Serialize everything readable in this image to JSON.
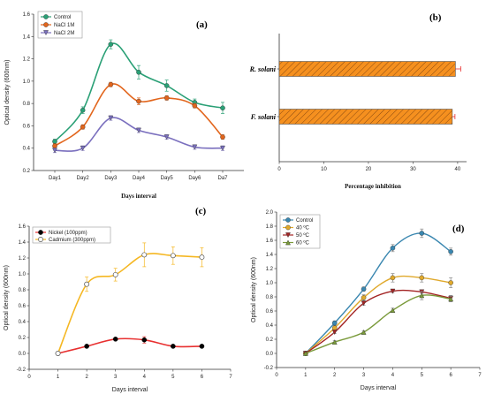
{
  "chart_data": [
    {
      "panel": "(a)",
      "type": "line",
      "categories": [
        "Day1",
        "Day2",
        "Day3",
        "Day4",
        "Day5",
        "Day6",
        "Da7"
      ],
      "xlabel": "Days interval",
      "ylabel": "Optical density (600nm)",
      "ylim": [
        0.2,
        1.6
      ],
      "yticks": [
        "0.2",
        "0.4",
        "0.6",
        "0.8",
        "1.0",
        "1.2",
        "1.4",
        "1.6"
      ],
      "legend_position": "top-left",
      "series": [
        {
          "name": "Control",
          "color": "#2aa076",
          "marker": "circle",
          "values": [
            0.46,
            0.74,
            1.33,
            1.08,
            0.96,
            0.81,
            0.76
          ],
          "errors": [
            0.02,
            0.03,
            0.04,
            0.06,
            0.05,
            0.03,
            0.05
          ]
        },
        {
          "name": "NaCl 1M",
          "color": "#e2651c",
          "marker": "circle",
          "values": [
            0.42,
            0.59,
            0.97,
            0.82,
            0.85,
            0.78,
            0.5
          ],
          "errors": [
            0.02,
            0.02,
            0.02,
            0.03,
            0.02,
            0.02,
            0.02
          ]
        },
        {
          "name": "NaCl 2M",
          "color": "#7a6fbe",
          "marker": "triangle-down",
          "values": [
            0.38,
            0.4,
            0.67,
            0.56,
            0.5,
            0.41,
            0.4
          ],
          "errors": [
            0.02,
            0.02,
            0.02,
            0.02,
            0.02,
            0.02,
            0.02
          ]
        }
      ]
    },
    {
      "panel": "(b)",
      "type": "bar",
      "orientation": "horizontal",
      "categories": [
        "R. solani",
        "F. solani"
      ],
      "values": [
        39.5,
        38.8
      ],
      "errors": [
        1.2,
        0.6
      ],
      "xlabel": "Percentage inhibition",
      "ylabel": "",
      "xlim": [
        0,
        42
      ],
      "xticks": [
        "0",
        "10",
        "20",
        "30",
        "40"
      ],
      "bar_color": "#f5901f",
      "hatch": "diagonal"
    },
    {
      "panel": "(c)",
      "type": "line",
      "x": [
        1,
        2,
        3,
        4,
        5,
        6
      ],
      "xlabel": "Days interval",
      "ylabel": "Optical density (600nm)",
      "xlim": [
        0,
        7
      ],
      "ylim": [
        -0.2,
        1.6
      ],
      "xticks": [
        "0",
        "1",
        "2",
        "3",
        "4",
        "5",
        "6",
        "7"
      ],
      "yticks": [
        "-0.2",
        "0.0",
        "0.2",
        "0.4",
        "0.6",
        "0.8",
        "1.0",
        "1.2",
        "1.4",
        "1.6"
      ],
      "legend_position": "top-left",
      "series": [
        {
          "name": "Nickel (100ppm)",
          "color": "#e83030",
          "marker": "filled-circle",
          "values": [
            0.0,
            0.09,
            0.18,
            0.17,
            0.09,
            0.09
          ],
          "errors": [
            0,
            0.01,
            0.01,
            0.04,
            0.01,
            0.01
          ]
        },
        {
          "name": "Cadmium (300ppm)",
          "color": "#f5b722",
          "marker": "open-circle",
          "values": [
            0.0,
            0.87,
            0.99,
            1.24,
            1.23,
            1.21
          ],
          "errors": [
            0,
            0.09,
            0.08,
            0.15,
            0.11,
            0.12
          ]
        }
      ]
    },
    {
      "panel": "(d)",
      "type": "line",
      "x": [
        1,
        2,
        3,
        4,
        5,
        6
      ],
      "xlabel": "Days interval",
      "ylabel": "Optical density (600nm)",
      "xlim": [
        0,
        7
      ],
      "ylim": [
        -0.2,
        2.0
      ],
      "xticks": [
        "0",
        "1",
        "2",
        "3",
        "4",
        "5",
        "6",
        "7"
      ],
      "yticks": [
        "-0.2",
        "0.0",
        "0.2",
        "0.4",
        "0.6",
        "0.8",
        "1.0",
        "1.2",
        "1.4",
        "1.6",
        "1.8",
        "2.0"
      ],
      "legend_position": "top-left",
      "series": [
        {
          "name": "Control",
          "color": "#3a87b0",
          "marker": "circle",
          "values": [
            0.0,
            0.43,
            0.91,
            1.49,
            1.7,
            1.44
          ],
          "errors": [
            0,
            0.03,
            0.03,
            0.05,
            0.06,
            0.05
          ]
        },
        {
          "name": "40 ºC",
          "color": "#e0a92c",
          "marker": "circle",
          "values": [
            0.0,
            0.36,
            0.79,
            1.07,
            1.07,
            1.0
          ],
          "errors": [
            0,
            0.03,
            0.04,
            0.06,
            0.06,
            0.07
          ]
        },
        {
          "name": "50 ºC",
          "color": "#a32424",
          "marker": "triangle-down",
          "values": [
            0.0,
            0.3,
            0.71,
            0.88,
            0.87,
            0.78
          ],
          "errors": [
            0,
            0.02,
            0.03,
            0.02,
            0.02,
            0.04
          ]
        },
        {
          "name": "60 ºC",
          "color": "#7a9a3a",
          "marker": "triangle-up",
          "values": [
            0.0,
            0.16,
            0.3,
            0.61,
            0.82,
            0.77
          ],
          "errors": [
            0,
            0.02,
            0.02,
            0.03,
            0.06,
            0.04
          ]
        }
      ]
    }
  ]
}
